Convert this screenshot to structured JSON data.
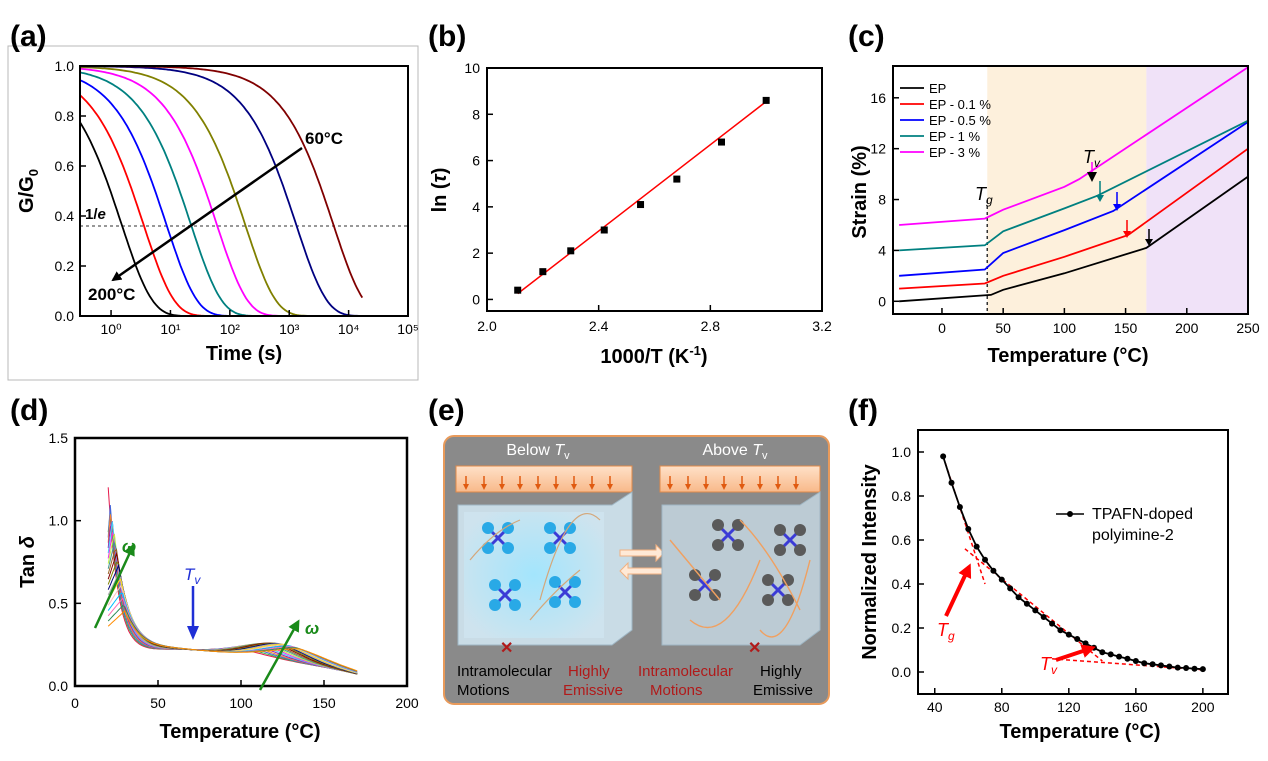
{
  "chart_data": [
    {
      "panel": "(a)",
      "type": "line",
      "xlabel": "Time (s)",
      "ylabel": "G/G₀",
      "xscale": "log",
      "xlim": [
        0.3,
        100000
      ],
      "ylim": [
        0.0,
        1.0
      ],
      "x_ticks": [
        "10⁰",
        "10¹",
        "10²",
        "10³",
        "10⁴",
        "10⁵"
      ],
      "y_ticks": [
        "0.0",
        "0.2",
        "0.4",
        "0.6",
        "0.8",
        "1.0"
      ],
      "annotations": [
        "60°C",
        "200°C",
        "1/e"
      ],
      "ref_line_y": 0.368,
      "series": [
        {
          "color": "#000000",
          "tau": 1.5
        },
        {
          "color": "#ff0000",
          "tau": 3.5
        },
        {
          "color": "#0000ff",
          "tau": 8.5
        },
        {
          "color": "#008080",
          "tau": 22
        },
        {
          "color": "#ff00ff",
          "tau": 60
        },
        {
          "color": "#808000",
          "tau": 180
        },
        {
          "color": "#000080",
          "tau": 1300
        },
        {
          "color": "#800000",
          "tau": 5500
        }
      ],
      "grid": false
    },
    {
      "panel": "(b)",
      "type": "scatter",
      "xlabel": "1000/T (K⁻¹)",
      "ylabel": "ln (τ)",
      "xlim": [
        2.0,
        3.2
      ],
      "ylim": [
        -0.5,
        10
      ],
      "x_ticks": [
        "2.0",
        "2.4",
        "2.8",
        "3.2"
      ],
      "y_ticks": [
        "0",
        "2",
        "4",
        "6",
        "8",
        "10"
      ],
      "x": [
        2.11,
        2.2,
        2.3,
        2.42,
        2.55,
        2.68,
        2.84,
        3.0
      ],
      "y": [
        0.4,
        1.2,
        2.1,
        3.0,
        4.1,
        5.2,
        6.8,
        8.6
      ],
      "fit_line": {
        "x": [
          2.11,
          3.0
        ],
        "y": [
          0.25,
          8.55
        ]
      },
      "grid": false
    },
    {
      "panel": "(c)",
      "type": "line",
      "xlabel": "Temperature (°C)",
      "ylabel": "Strain (%)",
      "xlim": [
        -40,
        250
      ],
      "ylim": [
        -1,
        18.5
      ],
      "x_ticks": [
        "0",
        "50",
        "100",
        "150",
        "200",
        "250"
      ],
      "y_ticks": [
        "0",
        "4",
        "8",
        "12",
        "16"
      ],
      "legend_position": "top-left",
      "annotations": [
        "Tᵥ",
        "Tᵍ"
      ],
      "tg_line_x": 37,
      "shaded_regions": [
        {
          "from": 37,
          "to": 167,
          "color": "#fdf0dc"
        },
        {
          "from": 167,
          "to": 250,
          "color": "#f0e2f8"
        }
      ],
      "series": [
        {
          "name": "EP",
          "color": "#000000",
          "x": [
            -35,
            40,
            50,
            100,
            167,
            250
          ],
          "y": [
            0.0,
            0.5,
            0.9,
            2.2,
            4.2,
            9.8
          ]
        },
        {
          "name": "EP - 0.1 %",
          "color": "#ff0000",
          "x": [
            -35,
            35,
            50,
            100,
            152,
            250
          ],
          "y": [
            1.0,
            1.4,
            2.0,
            3.5,
            5.2,
            12.0
          ]
        },
        {
          "name": "EP - 0.5 %",
          "color": "#0000ff",
          "x": [
            -35,
            35,
            50,
            100,
            140,
            250
          ],
          "y": [
            2.0,
            2.5,
            3.8,
            5.6,
            7.1,
            14.1
          ]
        },
        {
          "name": "EP - 1 %",
          "color": "#008080",
          "x": [
            -35,
            35,
            50,
            100,
            127,
            250
          ],
          "y": [
            4.0,
            4.4,
            5.5,
            7.3,
            8.3,
            14.2
          ]
        },
        {
          "name": "EP - 3 %",
          "color": "#ff00ff",
          "x": [
            -35,
            35,
            50,
            100,
            112,
            250
          ],
          "y": [
            6.0,
            6.5,
            7.2,
            9.0,
            9.6,
            18.4
          ]
        }
      ],
      "grid": false
    },
    {
      "panel": "(d)",
      "type": "line",
      "xlabel": "Temperature (°C)",
      "ylabel": "Tan δ",
      "xlim": [
        0,
        200
      ],
      "ylim": [
        0,
        1.5
      ],
      "x_ticks": [
        "0",
        "50",
        "100",
        "150",
        "200"
      ],
      "y_ticks": [
        "0.0",
        "0.5",
        "1.0",
        "1.5"
      ],
      "annotations": [
        "ω",
        "Tᵥ",
        "ω"
      ],
      "tv_x": 72,
      "curve_count": 20,
      "curve_colors": [
        "#e6194b",
        "#3cb44b",
        "#4363d8",
        "#f58231",
        "#911eb4",
        "#42d4f4",
        "#f032e6",
        "#bfef45",
        "#469990",
        "#9a6324",
        "#800000",
        "#808000",
        "#000075",
        "#a9a9a9",
        "#ffe119",
        "#fabebe",
        "#00bfff",
        "#ff69b4",
        "#2e8b57",
        "#ff8c00"
      ],
      "grid": false
    },
    {
      "panel": "(e)",
      "type": "diagram",
      "left_title": "Below Tᵥ",
      "right_title": "Above Tᵥ",
      "left_caption": [
        "Intramolecular Motions",
        "Highly Emissive"
      ],
      "right_caption": [
        "Intramolecular Motions",
        "Highly Emissive"
      ]
    },
    {
      "panel": "(f)",
      "type": "line",
      "xlabel": "Temperature (°C)",
      "ylabel": "Normalized Intensity",
      "xlim": [
        30,
        215
      ],
      "ylim": [
        -0.1,
        1.1
      ],
      "x_ticks": [
        "40",
        "80",
        "120",
        "160",
        "200"
      ],
      "y_ticks": [
        "0.0",
        "0.2",
        "0.4",
        "0.6",
        "0.8",
        "1.0"
      ],
      "legend_position": "center-right",
      "annotations": [
        "Tᵍ",
        "Tᵥ"
      ],
      "series": [
        {
          "name": "TPAFN-doped polyimine-2",
          "color": "#000000",
          "x": [
            45,
            50,
            55,
            60,
            65,
            70,
            75,
            80,
            85,
            90,
            95,
            100,
            105,
            110,
            115,
            120,
            125,
            130,
            135,
            140,
            145,
            150,
            155,
            160,
            165,
            170,
            175,
            180,
            185,
            190,
            195,
            200
          ],
          "y": [
            0.98,
            0.86,
            0.75,
            0.65,
            0.57,
            0.51,
            0.46,
            0.42,
            0.38,
            0.34,
            0.31,
            0.28,
            0.25,
            0.22,
            0.19,
            0.17,
            0.15,
            0.13,
            0.11,
            0.09,
            0.08,
            0.07,
            0.06,
            0.05,
            0.04,
            0.035,
            0.03,
            0.025,
            0.02,
            0.018,
            0.015,
            0.013
          ]
        }
      ],
      "grid": false
    }
  ],
  "labels": {
    "a": {
      "panel": "(a)",
      "t60": "60°C",
      "t200": "200°C",
      "inv_e": "1/",
      "inv_e_it": "e",
      "ylabel_main": "G/G",
      "ylabel_sub": "0",
      "xlabel": "Time (s)"
    },
    "b": {
      "panel": "(b)",
      "ylabel_pre": "ln (",
      "ylabel_tau": "τ",
      "ylabel_post": ")",
      "xlabel_pre": "1000/T (K",
      "xlabel_sup": "-1",
      "xlabel_post": ")"
    },
    "c": {
      "panel": "(c)",
      "ylabel": "Strain (%)",
      "xlabel": "Temperature (°C)",
      "T": "T",
      "v": "v",
      "g": "g"
    },
    "d": {
      "panel": "(d)",
      "ylabel_pre": "Tan ",
      "ylabel_delta": "δ",
      "xlabel": "Temperature (°C)",
      "omega": "ω",
      "T": "T",
      "v": "v"
    },
    "e": {
      "panel": "(e)",
      "below": "Below ",
      "above": "Above ",
      "T": "T",
      "v": "v",
      "intra1": "Intramolecular",
      "motions1": "Motions",
      "highly1": "Highly",
      "emissive1": "Emissive",
      "intra2": "Intramolecular",
      "motions2": "Motions",
      "highly2": "Highly",
      "emissive2": "Emissive"
    },
    "f": {
      "panel": "(f)",
      "ylabel": "Normalized Intensity",
      "xlabel": "Temperature (°C)",
      "legend1": "TPAFN-doped",
      "legend2": "polyimine-2",
      "T": "T",
      "g": "g",
      "v": "v"
    }
  }
}
